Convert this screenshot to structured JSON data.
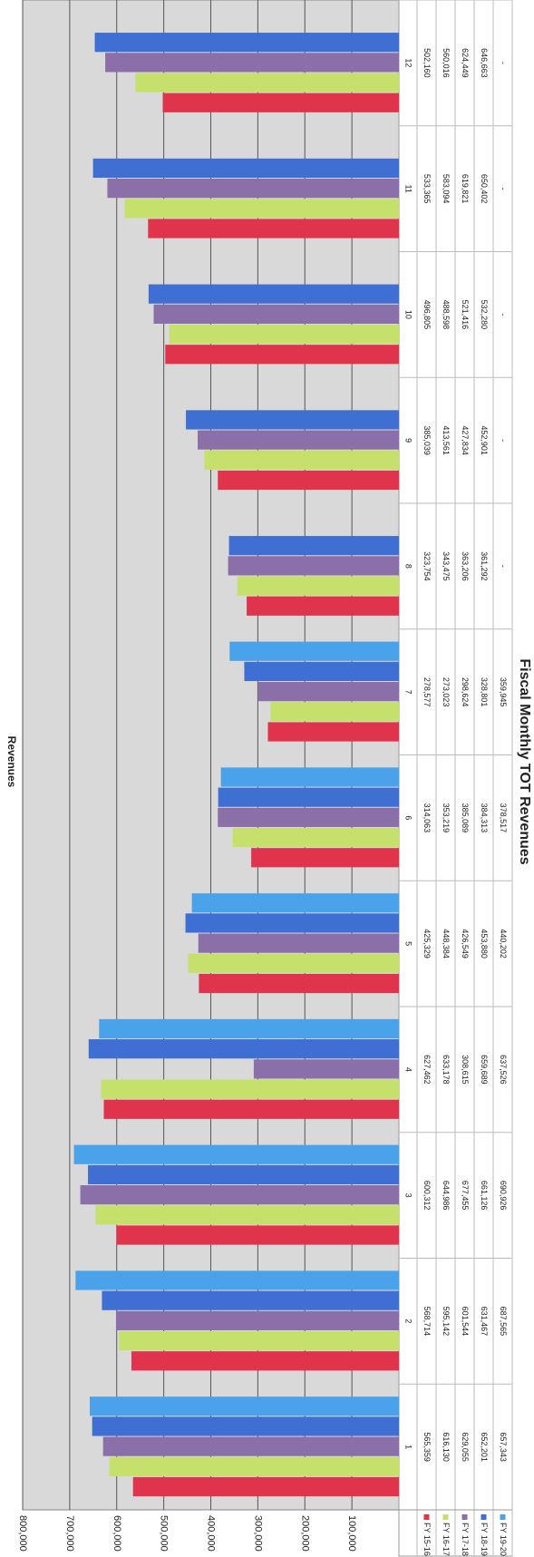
{
  "chart_data": {
    "type": "bar",
    "title": "Fiscal Monthly TOT Revenues",
    "y_label": "Revenues",
    "categories": [
      "1",
      "2",
      "3",
      "4",
      "5",
      "6",
      "7",
      "8",
      "9",
      "10",
      "11",
      "12"
    ],
    "ylim": [
      0,
      800000
    ],
    "yticks": [
      {
        "value": 0,
        "label": "-"
      },
      {
        "value": 100000,
        "label": "100,000"
      },
      {
        "value": 200000,
        "label": "200,000"
      },
      {
        "value": 300000,
        "label": "300,000"
      },
      {
        "value": 400000,
        "label": "400,000"
      },
      {
        "value": 500000,
        "label": "500,000"
      },
      {
        "value": 600000,
        "label": "600,000"
      },
      {
        "value": 700000,
        "label": "700,000"
      },
      {
        "value": 800000,
        "label": "800,000"
      }
    ],
    "grid": true,
    "series": [
      {
        "name": "FY 15-16",
        "color": "#e0344c",
        "values": [
          565359,
          568714,
          600312,
          627462,
          425329,
          314063,
          278577,
          323754,
          385039,
          496805,
          533365,
          502160
        ],
        "value_labels": [
          "565,359",
          "568,714",
          "600,312",
          "627,462",
          "425,329",
          "314,063",
          "278,577",
          "323,754",
          "385,039",
          "496,805",
          "533,365",
          "502,160"
        ]
      },
      {
        "name": "FY 16-17",
        "color": "#c6e06c",
        "values": [
          616130,
          595142,
          644986,
          633178,
          448384,
          353219,
          273023,
          343475,
          413561,
          488598,
          583094,
          560016
        ],
        "value_labels": [
          "616,130",
          "595,142",
          "644,986",
          "633,178",
          "448,384",
          "353,219",
          "273,023",
          "343,475",
          "413,561",
          "488,598",
          "583,094",
          "560,016"
        ]
      },
      {
        "name": "FY 17-18",
        "color": "#8b6fa9",
        "values": [
          629055,
          601544,
          677455,
          308615,
          426549,
          385089,
          298624,
          363206,
          427834,
          521416,
          619821,
          624449
        ],
        "value_labels": [
          "629,055",
          "601,544",
          "677,455",
          "308,615",
          "426,549",
          "385,089",
          "298,624",
          "363,206",
          "427,834",
          "521,416",
          "619,821",
          "624,449"
        ]
      },
      {
        "name": "FY 18-19",
        "color": "#3f6fd2",
        "values": [
          652201,
          631467,
          661126,
          659689,
          453880,
          384313,
          328801,
          361292,
          452901,
          532280,
          650402,
          646663
        ],
        "value_labels": [
          "652,201",
          "631,467",
          "661,126",
          "659,689",
          "453,880",
          "384,313",
          "328,801",
          "361,292",
          "452,901",
          "532,280",
          "650,402",
          "646,663"
        ]
      },
      {
        "name": "FY 19-20",
        "color": "#4aa3ea",
        "values": [
          657343,
          687565,
          690926,
          637526,
          440202,
          378517,
          359945,
          null,
          null,
          null,
          null,
          null
        ],
        "value_labels": [
          "657,343",
          "687,565",
          "690,926",
          "637,526",
          "440,202",
          "378,517",
          "359,945",
          "-",
          "-",
          "-",
          "-",
          "-"
        ]
      }
    ]
  }
}
